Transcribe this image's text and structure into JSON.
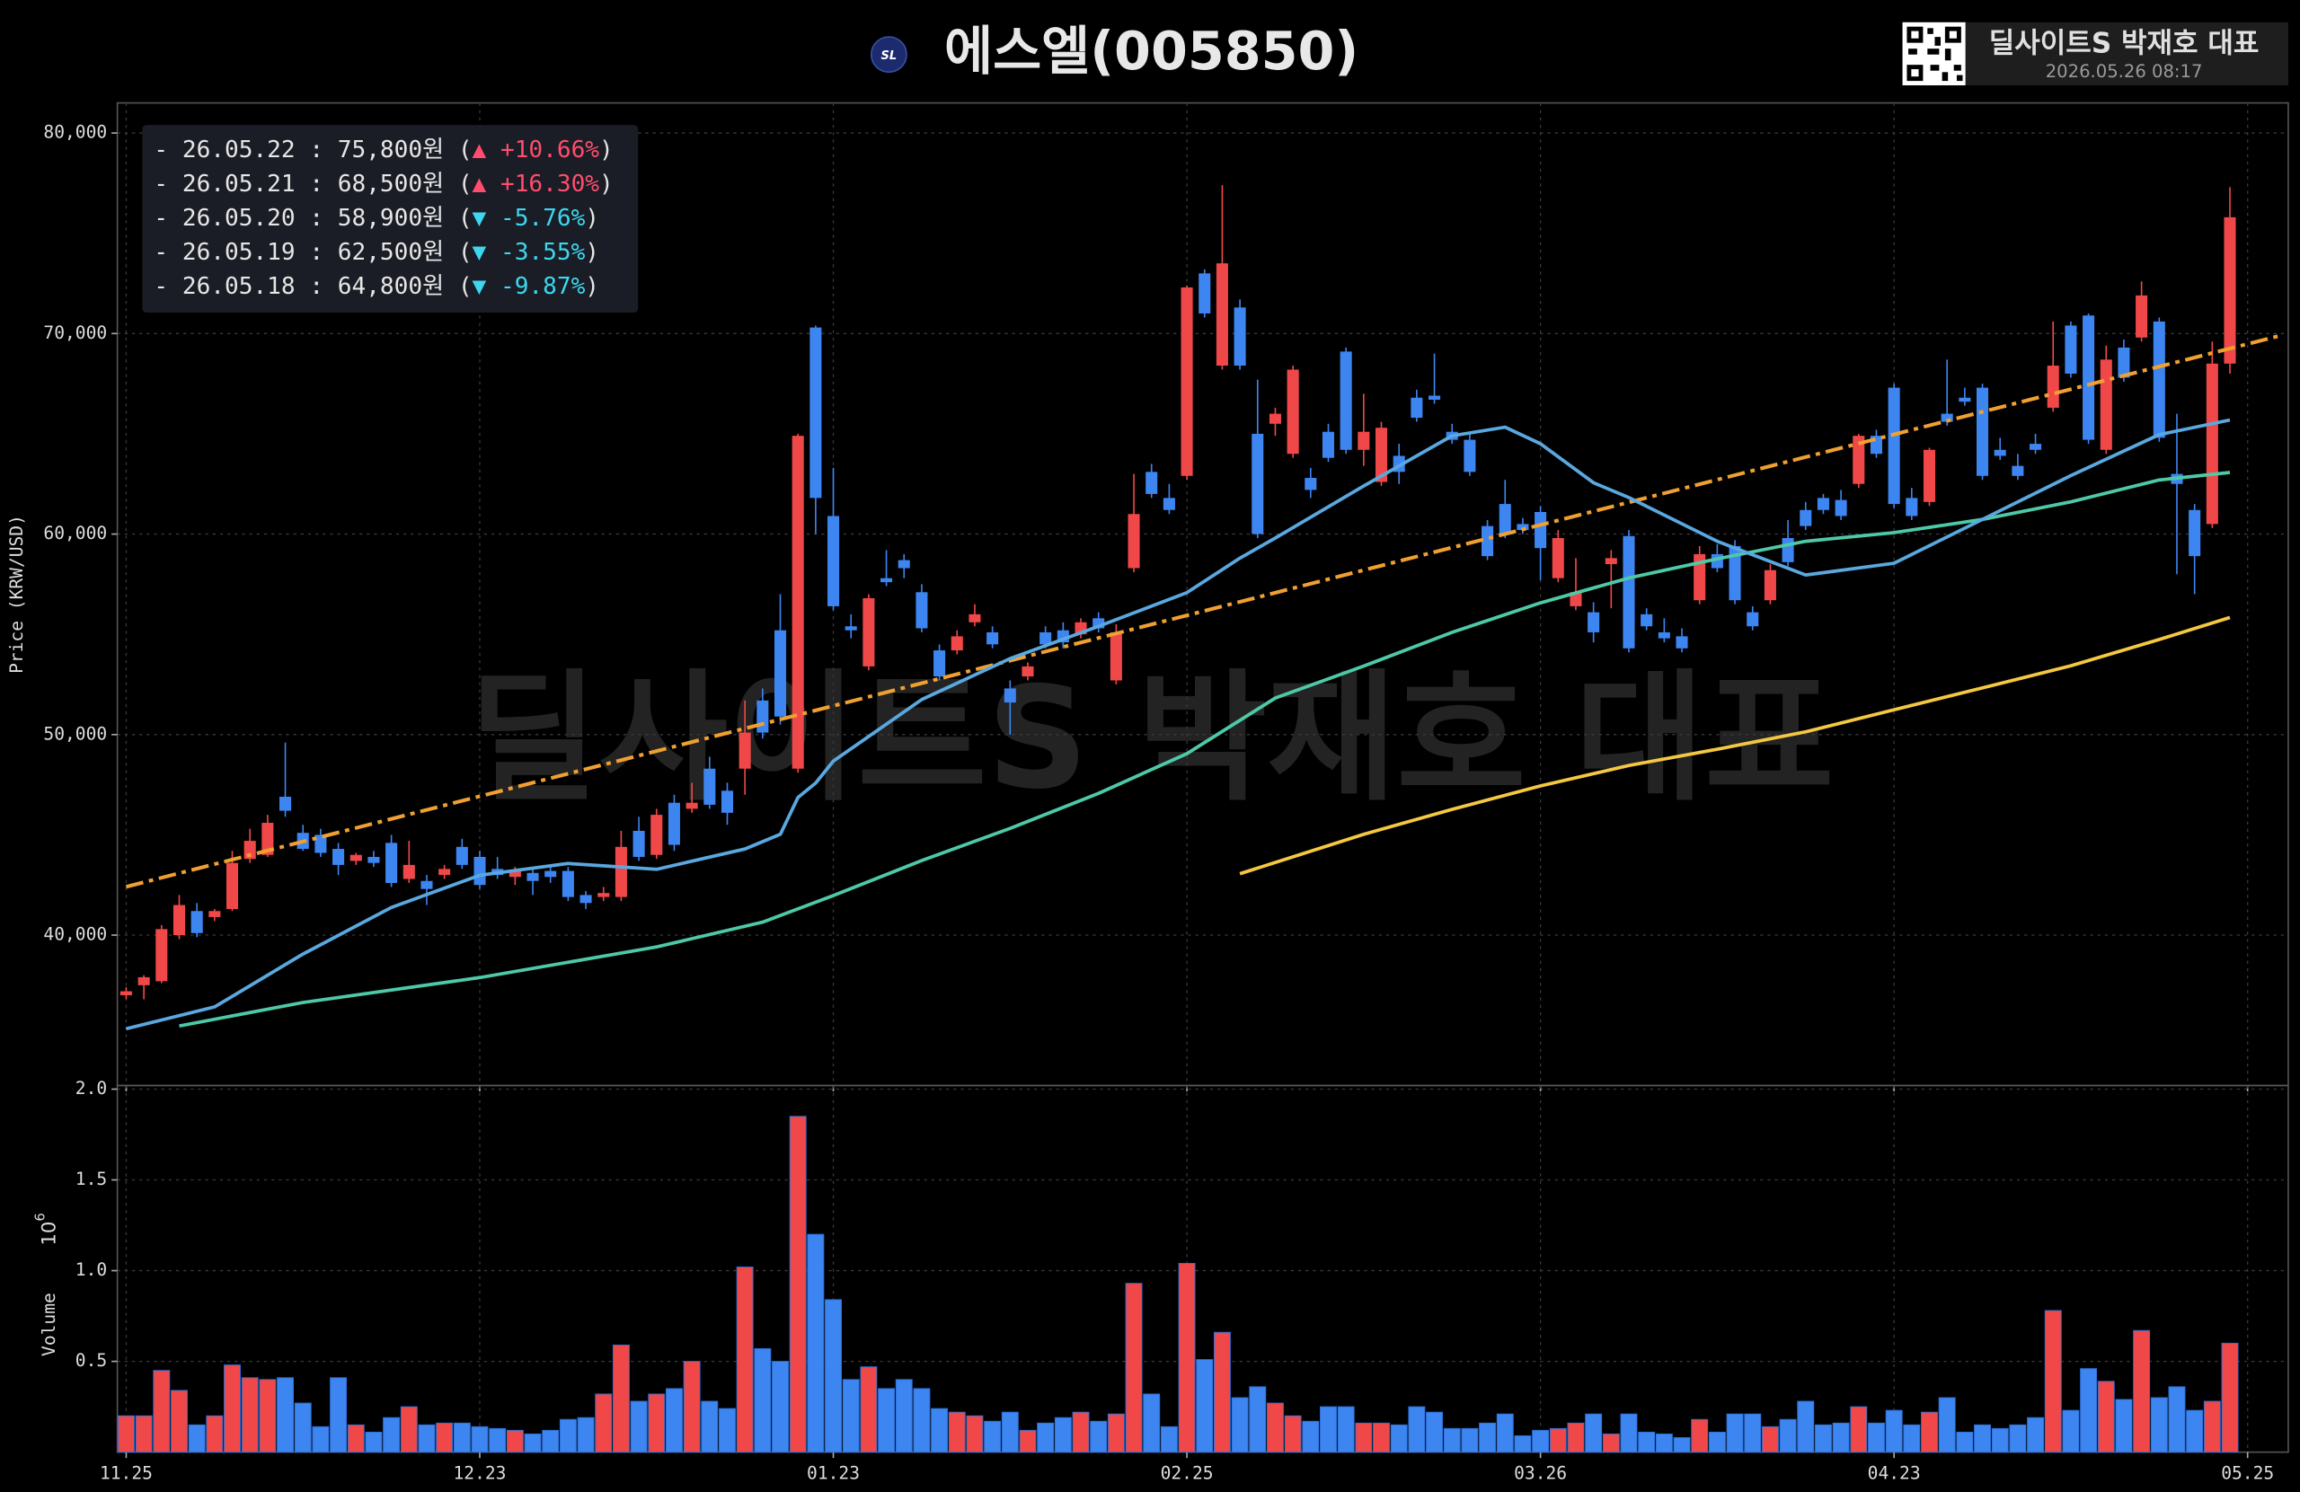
{
  "header": {
    "logo": "SL",
    "title": "에스엘(005850)",
    "badge": "딜사이트S 박재호 대표",
    "timestamp": "2026.05.26 08:17"
  },
  "watermark": "딜사이트S 박재호 대표",
  "legend": [
    {
      "prefix": "- 26.05.22 : 75,800원 (",
      "change": "▲ +10.66%",
      "suffix": ")",
      "color": "#ff4d6d"
    },
    {
      "prefix": "- 26.05.21 : 68,500원 (",
      "change": "▲ +16.30%",
      "suffix": ")",
      "color": "#ff4d6d"
    },
    {
      "prefix": "- 26.05.20 : 58,900원 (",
      "change": "▼ -5.76%",
      "suffix": ")",
      "color": "#3dd7f0"
    },
    {
      "prefix": "- 26.05.19 : 62,500원 (",
      "change": "▼ -3.55%",
      "suffix": ")",
      "color": "#3dd7f0"
    },
    {
      "prefix": "- 26.05.18 : 64,800원 (",
      "change": "▼ -9.87%",
      "suffix": ")",
      "color": "#3dd7f0"
    }
  ],
  "chart_data": [
    {
      "type": "candlestick",
      "ylabel": "Price (KRW/USD)",
      "up_color": "#f04848",
      "down_color": "#3d85f0",
      "grid": true,
      "xlim": [
        -0.5,
        122.3
      ],
      "ylim": [
        32500,
        81500
      ],
      "yticks": [
        {
          "value": 40000,
          "label": "40,000"
        },
        {
          "value": 50000,
          "label": "50,000"
        },
        {
          "value": 60000,
          "label": "60,000"
        },
        {
          "value": 70000,
          "label": "70,000"
        },
        {
          "value": 80000,
          "label": "80,000"
        }
      ],
      "x": [
        0,
        1,
        2,
        3,
        4,
        5,
        6,
        7,
        8,
        9,
        10,
        11,
        12,
        13,
        14,
        15,
        16,
        17,
        18,
        19,
        20,
        21,
        22,
        23,
        24,
        25,
        26,
        27,
        28,
        29,
        30,
        31,
        32,
        33,
        34,
        35,
        36,
        37,
        38,
        39,
        40,
        41,
        42,
        43,
        44,
        45,
        46,
        47,
        48,
        49,
        50,
        51,
        52,
        53,
        54,
        55,
        56,
        57,
        58,
        59,
        60,
        61,
        62,
        63,
        64,
        65,
        66,
        67,
        68,
        69,
        70,
        71,
        72,
        73,
        74,
        75,
        76,
        77,
        78,
        79,
        80,
        81,
        82,
        83,
        84,
        85,
        86,
        87,
        88,
        89,
        90,
        91,
        92,
        93,
        94,
        95,
        96,
        97,
        98,
        99,
        100,
        101,
        102,
        103,
        104,
        105,
        106,
        107,
        108,
        109,
        110,
        111,
        112,
        113,
        114,
        115,
        116,
        117,
        118,
        119
      ],
      "open": [
        37000,
        37500,
        37700,
        40000,
        41200,
        40900,
        41300,
        43800,
        44000,
        46900,
        45100,
        45000,
        44300,
        43700,
        43900,
        44600,
        42800,
        42700,
        43000,
        44400,
        43900,
        43300,
        42900,
        43100,
        43200,
        43200,
        42000,
        41900,
        41900,
        45200,
        44000,
        46600,
        46300,
        48300,
        47200,
        48300,
        51700,
        55200,
        48300,
        70300,
        60900,
        55400,
        53400,
        57800,
        58700,
        57100,
        54200,
        54200,
        55600,
        55100,
        52300,
        52900,
        55100,
        55200,
        55000,
        55800,
        52700,
        58300,
        63100,
        61800,
        62900,
        73000,
        68400,
        71300,
        65000,
        65500,
        64000,
        62800,
        65100,
        69100,
        64200,
        62600,
        63900,
        66800,
        66900,
        65100,
        64700,
        60400,
        61500,
        60500,
        61100,
        57800,
        56400,
        56100,
        58500,
        59900,
        56000,
        55100,
        54900,
        56700,
        59000,
        59400,
        56100,
        56700,
        59800,
        61200,
        61800,
        61700,
        62500,
        64900,
        67300,
        61800,
        61600,
        66000,
        66800,
        67300,
        64200,
        63400,
        64500,
        66300,
        70400,
        70900,
        64200,
        69300,
        69800,
        70600,
        63000,
        61200,
        60500,
        68500
      ],
      "high": [
        37400,
        38000,
        40500,
        42000,
        41600,
        41300,
        44200,
        45300,
        46000,
        49600,
        45500,
        45300,
        44600,
        44100,
        44200,
        45000,
        44700,
        43000,
        43500,
        44800,
        44200,
        43900,
        43400,
        43400,
        43500,
        43400,
        42200,
        42400,
        45200,
        45900,
        46300,
        47000,
        47600,
        48900,
        47600,
        51700,
        52300,
        57000,
        65000,
        70400,
        63300,
        56000,
        57000,
        59200,
        59000,
        57500,
        54500,
        55200,
        56500,
        55400,
        52700,
        53600,
        55400,
        55600,
        55800,
        56100,
        55500,
        63000,
        63500,
        62500,
        72400,
        73200,
        77400,
        71700,
        67700,
        66300,
        68400,
        63300,
        65500,
        69300,
        67000,
        65600,
        64500,
        67200,
        69000,
        65500,
        65000,
        60700,
        62700,
        60800,
        61400,
        60200,
        58800,
        56600,
        59200,
        60200,
        56300,
        55800,
        55300,
        59400,
        59500,
        59700,
        56400,
        58500,
        60700,
        61600,
        62000,
        62200,
        65000,
        65200,
        67500,
        62300,
        64300,
        68700,
        67300,
        67500,
        64800,
        64000,
        65000,
        70600,
        70600,
        71000,
        69400,
        69700,
        72600,
        70800,
        66000,
        61500,
        69600,
        77300
      ],
      "low": [
        36800,
        36800,
        37600,
        39800,
        39900,
        40700,
        41200,
        43600,
        43900,
        45900,
        44200,
        43900,
        43000,
        43500,
        43400,
        42400,
        42600,
        41500,
        42800,
        43300,
        42300,
        42800,
        42500,
        42000,
        42600,
        41700,
        41300,
        41700,
        41700,
        43700,
        43800,
        44200,
        46100,
        46300,
        45500,
        47000,
        49800,
        50500,
        48100,
        60000,
        56200,
        54800,
        53200,
        57400,
        57800,
        55100,
        52700,
        54000,
        55400,
        54300,
        50000,
        52700,
        54300,
        54300,
        54800,
        55100,
        52500,
        58100,
        61800,
        61000,
        62700,
        70800,
        68200,
        68200,
        59800,
        64900,
        63800,
        61800,
        63600,
        64000,
        63400,
        62400,
        62500,
        65600,
        66500,
        64500,
        62900,
        58700,
        59800,
        60000,
        57700,
        57600,
        56200,
        54600,
        56300,
        54100,
        55200,
        54600,
        54100,
        56500,
        58100,
        56500,
        55200,
        56500,
        58400,
        60200,
        61000,
        60700,
        62300,
        63800,
        61300,
        60700,
        61400,
        65400,
        66400,
        62700,
        63700,
        62700,
        64000,
        66100,
        67800,
        64500,
        64000,
        67600,
        69600,
        64600,
        58000,
        57000,
        60300,
        68000
      ],
      "close": [
        37200,
        37900,
        40300,
        41500,
        40100,
        41200,
        43600,
        44700,
        45600,
        46200,
        44300,
        44100,
        43500,
        44000,
        43600,
        42600,
        43500,
        42300,
        43300,
        43500,
        42500,
        43000,
        43200,
        42700,
        42900,
        41900,
        41600,
        42100,
        44400,
        43900,
        46000,
        44500,
        46600,
        46500,
        46100,
        50100,
        50100,
        50900,
        64900,
        61800,
        56400,
        55200,
        56800,
        57600,
        58300,
        55300,
        52900,
        54900,
        56000,
        54500,
        51600,
        53400,
        54500,
        54600,
        55600,
        55300,
        55100,
        61000,
        62000,
        61200,
        72300,
        71000,
        73500,
        68400,
        60000,
        66000,
        68200,
        62200,
        63800,
        64200,
        65100,
        65300,
        63100,
        65800,
        66700,
        64700,
        63100,
        58900,
        60000,
        60200,
        59300,
        59800,
        57100,
        55100,
        58800,
        54300,
        55400,
        54800,
        54300,
        59000,
        58300,
        56700,
        55400,
        58200,
        58600,
        60400,
        61200,
        60900,
        64900,
        64000,
        61500,
        60900,
        64200,
        65600,
        66600,
        62900,
        63900,
        62900,
        64200,
        68400,
        68000,
        64700,
        68700,
        67800,
        71900,
        64800,
        62500,
        58900,
        68500,
        75800
      ],
      "lines": [
        {
          "color": "#f0a030",
          "style": "dashdot",
          "x": [
            0,
            122
          ],
          "values": [
            42410,
            69930
          ]
        },
        {
          "color": "#f5c842",
          "style": "solid",
          "x": [
            63,
            70,
            75,
            80,
            85,
            90,
            95,
            100,
            105,
            110,
            115,
            119
          ],
          "values": [
            43060,
            45030,
            46270,
            47440,
            48460,
            49270,
            50140,
            51240,
            52330,
            53430,
            54740,
            55840
          ]
        },
        {
          "color": "#4ec9a8",
          "style": "solid",
          "x": [
            3,
            10,
            20,
            30,
            36,
            40,
            45,
            50,
            55,
            60,
            65,
            70,
            75,
            80,
            85,
            90,
            95,
            100,
            105,
            110,
            115,
            119
          ],
          "values": [
            35470,
            36640,
            37880,
            39410,
            40650,
            41970,
            43720,
            45320,
            47070,
            49050,
            51820,
            53420,
            55100,
            56570,
            57810,
            58760,
            59640,
            60070,
            60730,
            61610,
            62700,
            63070
          ]
        },
        {
          "color": "#5aa8e0",
          "style": "solid",
          "x": [
            0,
            5,
            10,
            15,
            20,
            25,
            30,
            35,
            37,
            38,
            39,
            40,
            45,
            50,
            55,
            60,
            63,
            65,
            70,
            75,
            78,
            80,
            83,
            85,
            90,
            95,
            100,
            105,
            110,
            115,
            119
          ],
          "values": [
            35330,
            36420,
            39050,
            41380,
            42990,
            43570,
            43280,
            44300,
            45030,
            46860,
            47590,
            48680,
            51750,
            53790,
            55400,
            57080,
            58800,
            59800,
            62400,
            64900,
            65330,
            64500,
            62560,
            61820,
            59640,
            57960,
            58540,
            60730,
            62920,
            64960,
            65690
          ]
        }
      ]
    },
    {
      "type": "bar",
      "ylabel": "Volume",
      "offset_text": "10",
      "offset_exponent": "6",
      "up_color": "#f04848",
      "down_color": "#3d85f0",
      "grid": true,
      "xlim": [
        -0.5,
        122.3
      ],
      "ylim": [
        0,
        2.02
      ],
      "yticks": [
        0.5,
        {
          "value": 1,
          "label": "1.0"
        },
        1.5,
        {
          "value": 2,
          "label": "2.0"
        }
      ],
      "xticks": [
        {
          "value": 0,
          "label": "11.25"
        },
        {
          "value": 20,
          "label": "12.23"
        },
        {
          "value": 40,
          "label": "01.23"
        },
        {
          "value": 60,
          "label": "02.25"
        },
        {
          "value": 80,
          "label": "03.26"
        },
        {
          "value": 100,
          "label": "04.23"
        },
        {
          "value": 120,
          "label": "05.25"
        }
      ],
      "x": [
        0,
        1,
        2,
        3,
        4,
        5,
        6,
        7,
        8,
        9,
        10,
        11,
        12,
        13,
        14,
        15,
        16,
        17,
        18,
        19,
        20,
        21,
        22,
        23,
        24,
        25,
        26,
        27,
        28,
        29,
        30,
        31,
        32,
        33,
        34,
        35,
        36,
        37,
        38,
        39,
        40,
        41,
        42,
        43,
        44,
        45,
        46,
        47,
        48,
        49,
        50,
        51,
        52,
        53,
        54,
        55,
        56,
        57,
        58,
        59,
        60,
        61,
        62,
        63,
        64,
        65,
        66,
        67,
        68,
        69,
        70,
        71,
        72,
        73,
        74,
        75,
        76,
        77,
        78,
        79,
        80,
        81,
        82,
        83,
        84,
        85,
        86,
        87,
        88,
        89,
        90,
        91,
        92,
        93,
        94,
        95,
        96,
        97,
        98,
        99,
        100,
        101,
        102,
        103,
        104,
        105,
        106,
        107,
        108,
        109,
        110,
        111,
        112,
        113,
        114,
        115,
        116,
        117,
        118,
        119
      ],
      "values": [
        0.2,
        0.2,
        0.45,
        0.34,
        0.15,
        0.2,
        0.48,
        0.41,
        0.4,
        0.41,
        0.27,
        0.14,
        0.41,
        0.15,
        0.11,
        0.19,
        0.25,
        0.15,
        0.16,
        0.16,
        0.14,
        0.13,
        0.12,
        0.1,
        0.12,
        0.18,
        0.19,
        0.32,
        0.59,
        0.28,
        0.32,
        0.35,
        0.5,
        0.28,
        0.24,
        1.02,
        0.57,
        0.5,
        1.85,
        1.2,
        0.84,
        0.4,
        0.47,
        0.35,
        0.4,
        0.35,
        0.24,
        0.22,
        0.2,
        0.17,
        0.22,
        0.12,
        0.16,
        0.19,
        0.22,
        0.17,
        0.21,
        0.93,
        0.32,
        0.14,
        1.04,
        0.51,
        0.66,
        0.3,
        0.36,
        0.27,
        0.2,
        0.17,
        0.25,
        0.25,
        0.16,
        0.16,
        0.15,
        0.25,
        0.22,
        0.13,
        0.13,
        0.16,
        0.21,
        0.09,
        0.12,
        0.13,
        0.16,
        0.21,
        0.1,
        0.21,
        0.11,
        0.1,
        0.08,
        0.18,
        0.11,
        0.21,
        0.21,
        0.14,
        0.18,
        0.28,
        0.15,
        0.16,
        0.25,
        0.16,
        0.23,
        0.15,
        0.22,
        0.3,
        0.11,
        0.15,
        0.13,
        0.15,
        0.19,
        0.78,
        0.23,
        0.46,
        0.39,
        0.29,
        0.67,
        0.3,
        0.36,
        0.23,
        0.28,
        0.6
      ]
    }
  ]
}
